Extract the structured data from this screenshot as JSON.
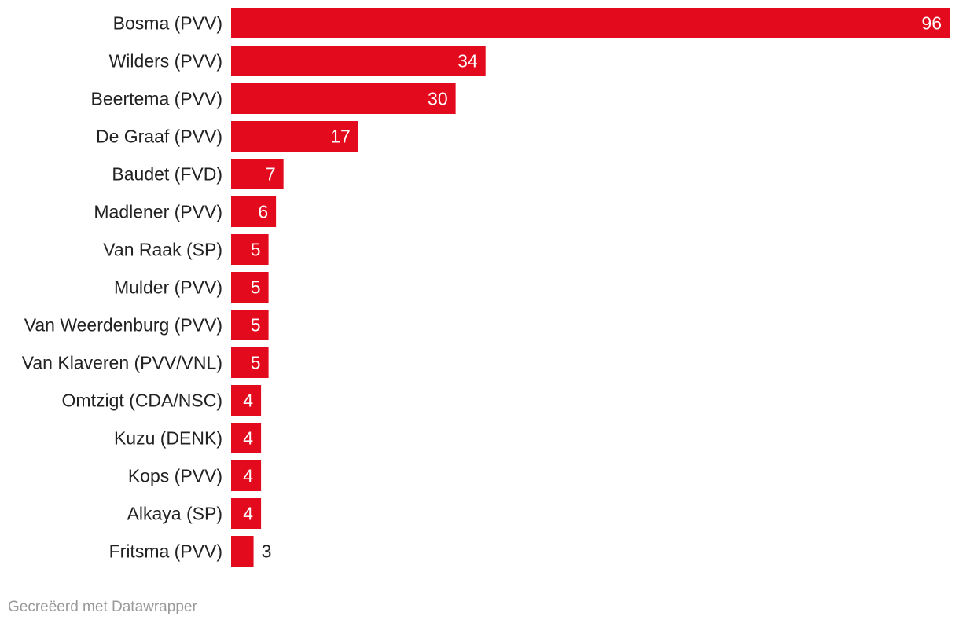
{
  "chart_data": {
    "type": "bar",
    "orientation": "horizontal",
    "categories": [
      "Bosma (PVV)",
      "Wilders (PVV)",
      "Beertema (PVV)",
      "De Graaf (PVV)",
      "Baudet (FVD)",
      "Madlener (PVV)",
      "Van Raak (SP)",
      "Mulder (PVV)",
      "Van Weerdenburg (PVV)",
      "Van Klaveren (PVV/VNL)",
      "Omtzigt (CDA/NSC)",
      "Kuzu (DENK)",
      "Kops (PVV)",
      "Alkaya (SP)",
      "Fritsma (PVV)"
    ],
    "values": [
      96,
      34,
      30,
      17,
      7,
      6,
      5,
      5,
      5,
      5,
      4,
      4,
      4,
      4,
      3
    ],
    "xlim": [
      0,
      96
    ],
    "grid": false,
    "legend": "none",
    "bar_color": "#e20a1c",
    "label_color_inside": "#ffffff",
    "label_color_outside": "#222222"
  },
  "footer": {
    "credit": "Gecreëerd met Datawrapper"
  }
}
